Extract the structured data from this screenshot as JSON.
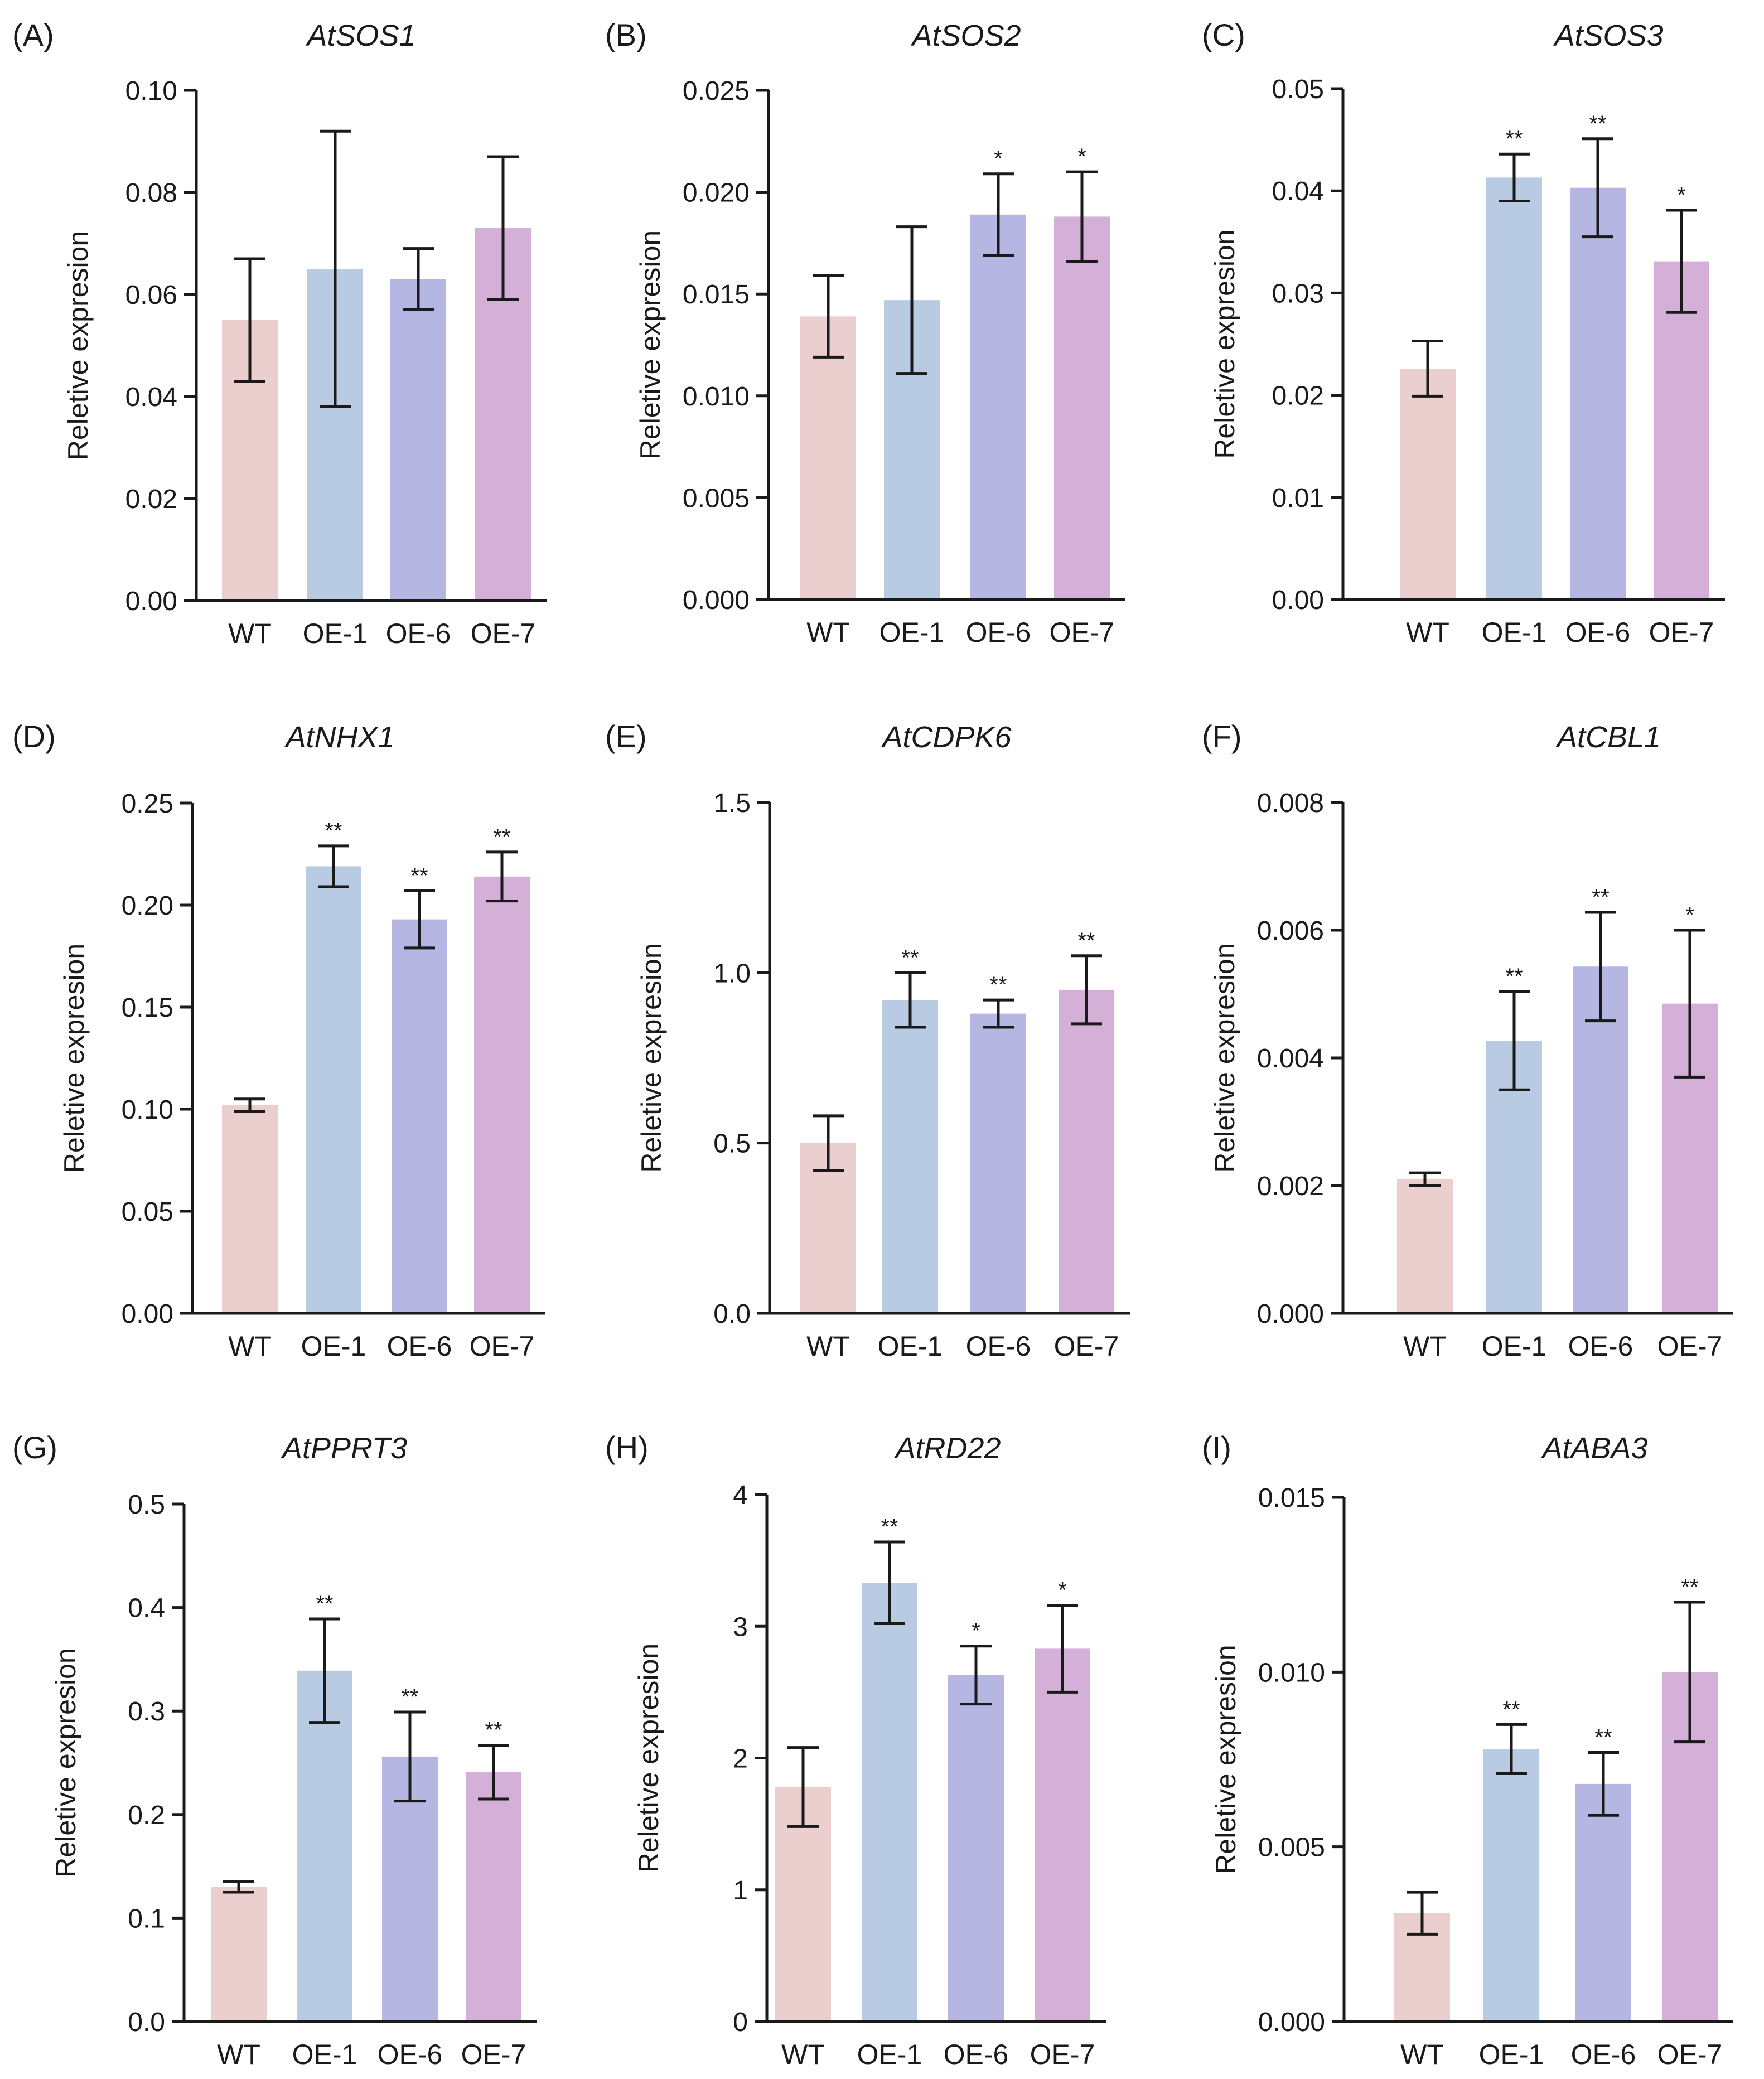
{
  "figure": {
    "bar_colors": {
      "WT": "#eacfce",
      "OE-1": "#b8cbe3",
      "OE-6": "#b5b6e1",
      "OE-7": "#d4b0d8"
    },
    "axis_title": "Reletive expresion",
    "categories": [
      "WT",
      "OE-1",
      "OE-6",
      "OE-7"
    ]
  },
  "chart_data": [
    {
      "type": "bar",
      "panel": "(A)",
      "title": "AtSOS1",
      "xlabel": "",
      "ylabel": "Reletive expresion",
      "categories": [
        "WT",
        "OE-1",
        "OE-6",
        "OE-7"
      ],
      "values": [
        0.055,
        0.065,
        0.063,
        0.073
      ],
      "errors": [
        0.012,
        0.027,
        0.006,
        0.014
      ],
      "significance": [
        "",
        "",
        "",
        ""
      ],
      "ylim": [
        0,
        0.1
      ],
      "ticks": [
        0,
        0.02,
        0.04,
        0.06,
        0.08,
        0.1
      ],
      "tick_labels": [
        "0.00",
        "0.02",
        "0.04",
        "0.06",
        "0.08",
        "0.10"
      ]
    },
    {
      "type": "bar",
      "panel": "(B)",
      "title": "AtSOS2",
      "xlabel": "",
      "ylabel": "Reletive expresion",
      "categories": [
        "WT",
        "OE-1",
        "OE-6",
        "OE-7"
      ],
      "values": [
        0.0139,
        0.0147,
        0.0189,
        0.0188
      ],
      "errors": [
        0.002,
        0.0036,
        0.002,
        0.0022
      ],
      "significance": [
        "",
        "",
        "*",
        "*"
      ],
      "ylim": [
        0,
        0.025
      ],
      "ticks": [
        0,
        0.005,
        0.01,
        0.015,
        0.02,
        0.025
      ],
      "tick_labels": [
        "0.000",
        "0.005",
        "0.010",
        "0.015",
        "0.020",
        "0.025"
      ]
    },
    {
      "type": "bar",
      "panel": "(C)",
      "title": "AtSOS3",
      "xlabel": "",
      "ylabel": "Reletive expresion",
      "categories": [
        "WT",
        "OE-1",
        "OE-6",
        "OE-7"
      ],
      "values": [
        0.0226,
        0.0413,
        0.0403,
        0.0331
      ],
      "errors": [
        0.0027,
        0.0023,
        0.0048,
        0.005
      ],
      "significance": [
        "",
        "**",
        "**",
        "*"
      ],
      "ylim": [
        0,
        0.05
      ],
      "ticks": [
        0,
        0.01,
        0.02,
        0.03,
        0.04,
        0.05
      ],
      "tick_labels": [
        "0.00",
        "0.01",
        "0.02",
        "0.03",
        "0.04",
        "0.05"
      ]
    },
    {
      "type": "bar",
      "panel": "(D)",
      "title": "AtNHX1",
      "xlabel": "",
      "ylabel": "Reletive expresion",
      "categories": [
        "WT",
        "OE-1",
        "OE-6",
        "OE-7"
      ],
      "values": [
        0.102,
        0.219,
        0.193,
        0.214
      ],
      "errors": [
        0.003,
        0.01,
        0.014,
        0.012
      ],
      "significance": [
        "",
        "**",
        "**",
        "**"
      ],
      "ylim": [
        0,
        0.25
      ],
      "ticks": [
        0,
        0.05,
        0.1,
        0.15,
        0.2,
        0.25
      ],
      "tick_labels": [
        "0.00",
        "0.05",
        "0.10",
        "0.15",
        "0.20",
        "0.25"
      ]
    },
    {
      "type": "bar",
      "panel": "(E)",
      "title": "AtCDPK6",
      "xlabel": "",
      "ylabel": "Reletive expresion",
      "categories": [
        "WT",
        "OE-1",
        "OE-6",
        "OE-7"
      ],
      "values": [
        0.5,
        0.92,
        0.88,
        0.95
      ],
      "errors": [
        0.08,
        0.08,
        0.04,
        0.1
      ],
      "significance": [
        "",
        "**",
        "**",
        "**"
      ],
      "ylim": [
        0,
        1.5
      ],
      "ticks": [
        0,
        0.5,
        1,
        1.5
      ],
      "tick_labels": [
        "0.0",
        "0.5",
        "1.0",
        "1.5"
      ]
    },
    {
      "type": "bar",
      "panel": "(F)",
      "title": "AtCBL1",
      "xlabel": "",
      "ylabel": "Reletive expresion",
      "categories": [
        "WT",
        "OE-1",
        "OE-6",
        "OE-7"
      ],
      "values": [
        0.0021,
        0.00427,
        0.00543,
        0.00485
      ],
      "errors": [
        0.0001,
        0.00077,
        0.00085,
        0.00115
      ],
      "significance": [
        "",
        "**",
        "**",
        "*"
      ],
      "ylim": [
        0,
        0.008
      ],
      "ticks": [
        0,
        0.002,
        0.004,
        0.006,
        0.008
      ],
      "tick_labels": [
        "0.000",
        "0.002",
        "0.004",
        "0.006",
        "0.008"
      ]
    },
    {
      "type": "bar",
      "panel": "(G)",
      "title": "AtPPRT3",
      "xlabel": "",
      "ylabel": "Reletive expresion",
      "categories": [
        "WT",
        "OE-1",
        "OE-6",
        "OE-7"
      ],
      "values": [
        0.13,
        0.339,
        0.256,
        0.241
      ],
      "errors": [
        0.005,
        0.05,
        0.043,
        0.026
      ],
      "significance": [
        "",
        "**",
        "**",
        "**"
      ],
      "ylim": [
        0,
        0.5
      ],
      "ticks": [
        0,
        0.1,
        0.2,
        0.3,
        0.4,
        0.5
      ],
      "tick_labels": [
        "0.0",
        "0.1",
        "0.2",
        "0.3",
        "0.4",
        "0.5"
      ]
    },
    {
      "type": "bar",
      "panel": "(H)",
      "title": "AtRD22",
      "xlabel": "",
      "ylabel": "Reletive expresion",
      "categories": [
        "WT",
        "OE-1",
        "OE-6",
        "OE-7"
      ],
      "values": [
        1.78,
        3.33,
        2.63,
        2.83
      ],
      "errors": [
        0.3,
        0.31,
        0.22,
        0.33
      ],
      "significance": [
        "",
        "**",
        "*",
        "*"
      ],
      "ylim": [
        0,
        4
      ],
      "ticks": [
        0,
        1,
        2,
        3,
        4
      ],
      "tick_labels": [
        "0",
        "1",
        "2",
        "3",
        "4"
      ]
    },
    {
      "type": "bar",
      "panel": "(I)",
      "title": "AtABA3",
      "xlabel": "",
      "ylabel": "Reletive expresion",
      "categories": [
        "WT",
        "OE-1",
        "OE-6",
        "OE-7"
      ],
      "values": [
        0.0031,
        0.0078,
        0.0068,
        0.01
      ],
      "errors": [
        0.0006,
        0.0007,
        0.0009,
        0.002
      ],
      "significance": [
        "",
        "**",
        "**",
        "**"
      ],
      "ylim": [
        0,
        0.015
      ],
      "ticks": [
        0,
        0.005,
        0.01,
        0.015
      ],
      "tick_labels": [
        "0.000",
        "0.005",
        "0.010",
        "0.015"
      ]
    }
  ]
}
